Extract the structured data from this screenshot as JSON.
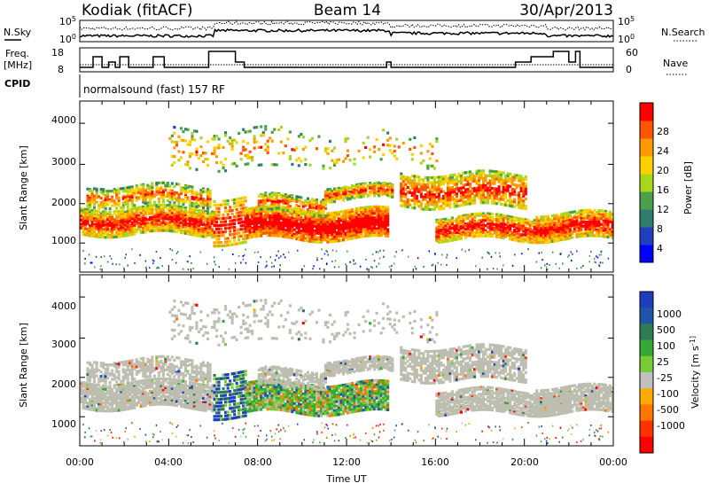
{
  "header": {
    "station": "Kodiak (fitACF)",
    "beam": "Beam 14",
    "date": "30/Apr/2013"
  },
  "meta_panels": {
    "nsky_label": "N.Sky",
    "nsearch_label": "N.Search",
    "nsky_ticks": [
      "10^5",
      "10^0"
    ],
    "nsearch_ticks": [
      "10^5",
      "10^0"
    ],
    "freq_label_1": "Freq.",
    "freq_label_2": "[MHz]",
    "freq_ticks": [
      "18",
      "8"
    ],
    "nave_label": "Nave",
    "nave_ticks": [
      "60",
      "0"
    ],
    "cpid_label": "CPID",
    "cpid_text": "normalsound (fast) 157 RF"
  },
  "colors": {
    "power": [
      "#0000ff",
      "#1f3fbf",
      "#2e7d6e",
      "#4aa04a",
      "#a6d71c",
      "#ffd000",
      "#ff9900",
      "#ff5500",
      "#ff0000"
    ],
    "velocity": [
      "#1c3fbf",
      "#2255aa",
      "#2e7d52",
      "#33aa33",
      "#77cc33",
      "#c0c0c0",
      "#ffaa00",
      "#ff7700",
      "#ff3300",
      "#ff0000"
    ],
    "ground_scatter": "#bebeb0"
  },
  "chart_data": [
    {
      "type": "heatmap",
      "name": "power",
      "ylabel": "Slant Range [km]",
      "yticks": [
        "4000",
        "3000",
        "2000",
        "1000"
      ],
      "colorbar_label": "Power [dB]",
      "colorbar_ticks": [
        "28",
        "24",
        "20",
        "16",
        "12",
        "8",
        "4"
      ],
      "colorbar_range": [
        0,
        32
      ],
      "xlim_hours": [
        0,
        24
      ],
      "ylim_km": [
        180,
        4600
      ]
    },
    {
      "type": "heatmap",
      "name": "velocity",
      "ylabel": "Slant Range [km]",
      "yticks": [
        "4000",
        "3000",
        "2000",
        "1000"
      ],
      "colorbar_label": "Velocity [m s^-1]",
      "colorbar_ticks": [
        "1000",
        "500",
        "100",
        "25",
        "-25",
        "-100",
        "-500",
        "-1000"
      ],
      "xlim_hours": [
        0,
        24
      ],
      "ylim_km": [
        180,
        4600
      ]
    }
  ],
  "x_axis": {
    "label": "Time UT",
    "ticks": [
      "00:00",
      "04:00",
      "08:00",
      "12:00",
      "16:00",
      "20:00",
      "00:00"
    ]
  }
}
